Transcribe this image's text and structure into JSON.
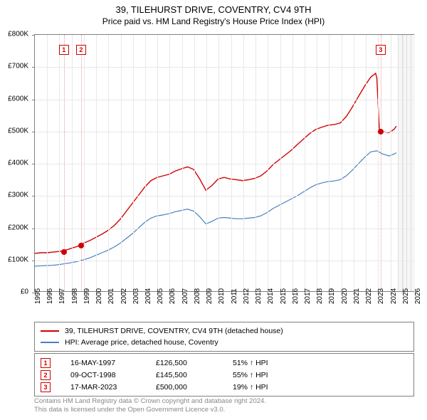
{
  "title": {
    "line1": "39, TILEHURST DRIVE, COVENTRY, CV4 9TH",
    "line2": "Price paid vs. HM Land Registry's House Price Index (HPI)"
  },
  "chart": {
    "type": "line",
    "background_color": "#ffffff",
    "border_color": "#808080",
    "grid_color": "#e8e8e8",
    "x": {
      "min": 1995,
      "max": 2026,
      "tick_step": 1,
      "label_fontsize": 10,
      "ticks": [
        1995,
        1996,
        1997,
        1998,
        1999,
        2000,
        2001,
        2002,
        2003,
        2004,
        2005,
        2006,
        2007,
        2008,
        2009,
        2010,
        2011,
        2012,
        2013,
        2014,
        2015,
        2016,
        2017,
        2018,
        2019,
        2020,
        2021,
        2022,
        2023,
        2024,
        2025,
        2026
      ]
    },
    "y": {
      "min": 0,
      "max": 800000,
      "tick_step": 100000,
      "prefix": "£",
      "suffix": "K",
      "divisor": 1000,
      "label_fontsize": 10,
      "ticks": [
        0,
        100000,
        200000,
        300000,
        400000,
        500000,
        600000,
        700000,
        800000
      ]
    },
    "future_band": {
      "start": 2024.6,
      "end": 2026,
      "fill": "#f6f6f6",
      "hatch_color": "#dddddd"
    },
    "series": [
      {
        "name": "39, TILEHURST DRIVE, COVENTRY, CV4 9TH (detached house)",
        "color": "#d00000",
        "line_width": 1.4,
        "points": [
          [
            1995.0,
            118000
          ],
          [
            1995.5,
            120000
          ],
          [
            1996.0,
            120000
          ],
          [
            1996.5,
            122000
          ],
          [
            1997.0,
            124000
          ],
          [
            1997.37,
            126500
          ],
          [
            1997.7,
            130000
          ],
          [
            1998.0,
            134000
          ],
          [
            1998.5,
            140000
          ],
          [
            1998.77,
            145500
          ],
          [
            1999.0,
            150000
          ],
          [
            1999.5,
            158000
          ],
          [
            2000.0,
            168000
          ],
          [
            2000.5,
            178000
          ],
          [
            2001.0,
            190000
          ],
          [
            2001.5,
            205000
          ],
          [
            2002.0,
            225000
          ],
          [
            2002.5,
            250000
          ],
          [
            2003.0,
            275000
          ],
          [
            2003.5,
            300000
          ],
          [
            2004.0,
            325000
          ],
          [
            2004.5,
            345000
          ],
          [
            2005.0,
            355000
          ],
          [
            2005.5,
            360000
          ],
          [
            2006.0,
            365000
          ],
          [
            2006.5,
            375000
          ],
          [
            2007.0,
            382000
          ],
          [
            2007.5,
            388000
          ],
          [
            2008.0,
            380000
          ],
          [
            2008.5,
            350000
          ],
          [
            2009.0,
            315000
          ],
          [
            2009.5,
            330000
          ],
          [
            2010.0,
            350000
          ],
          [
            2010.5,
            355000
          ],
          [
            2011.0,
            350000
          ],
          [
            2011.5,
            348000
          ],
          [
            2012.0,
            345000
          ],
          [
            2012.5,
            348000
          ],
          [
            2013.0,
            352000
          ],
          [
            2013.5,
            360000
          ],
          [
            2014.0,
            375000
          ],
          [
            2014.5,
            395000
          ],
          [
            2015.0,
            410000
          ],
          [
            2015.5,
            425000
          ],
          [
            2016.0,
            440000
          ],
          [
            2016.5,
            458000
          ],
          [
            2017.0,
            475000
          ],
          [
            2017.5,
            492000
          ],
          [
            2018.0,
            505000
          ],
          [
            2018.5,
            512000
          ],
          [
            2019.0,
            518000
          ],
          [
            2019.5,
            520000
          ],
          [
            2020.0,
            525000
          ],
          [
            2020.5,
            545000
          ],
          [
            2021.0,
            575000
          ],
          [
            2021.5,
            608000
          ],
          [
            2022.0,
            640000
          ],
          [
            2022.5,
            668000
          ],
          [
            2022.9,
            680000
          ],
          [
            2023.0,
            665000
          ],
          [
            2023.21,
            500000
          ],
          [
            2023.5,
            498000
          ],
          [
            2024.0,
            495000
          ],
          [
            2024.4,
            505000
          ],
          [
            2024.6,
            515000
          ]
        ]
      },
      {
        "name": "HPI: Average price, detached house, Coventry",
        "color": "#4a7fc4",
        "line_width": 1.2,
        "points": [
          [
            1995.0,
            78000
          ],
          [
            1995.5,
            79000
          ],
          [
            1996.0,
            80000
          ],
          [
            1996.5,
            81000
          ],
          [
            1997.0,
            83000
          ],
          [
            1997.5,
            86000
          ],
          [
            1998.0,
            89000
          ],
          [
            1998.5,
            93000
          ],
          [
            1999.0,
            98000
          ],
          [
            1999.5,
            104000
          ],
          [
            2000.0,
            112000
          ],
          [
            2000.5,
            120000
          ],
          [
            2001.0,
            128000
          ],
          [
            2001.5,
            138000
          ],
          [
            2002.0,
            150000
          ],
          [
            2002.5,
            165000
          ],
          [
            2003.0,
            180000
          ],
          [
            2003.5,
            198000
          ],
          [
            2004.0,
            215000
          ],
          [
            2004.5,
            228000
          ],
          [
            2005.0,
            235000
          ],
          [
            2005.5,
            238000
          ],
          [
            2006.0,
            242000
          ],
          [
            2006.5,
            248000
          ],
          [
            2007.0,
            252000
          ],
          [
            2007.5,
            256000
          ],
          [
            2008.0,
            250000
          ],
          [
            2008.5,
            232000
          ],
          [
            2009.0,
            210000
          ],
          [
            2009.5,
            218000
          ],
          [
            2010.0,
            228000
          ],
          [
            2010.5,
            230000
          ],
          [
            2011.0,
            228000
          ],
          [
            2011.5,
            226000
          ],
          [
            2012.0,
            226000
          ],
          [
            2012.5,
            228000
          ],
          [
            2013.0,
            230000
          ],
          [
            2013.5,
            235000
          ],
          [
            2014.0,
            245000
          ],
          [
            2014.5,
            258000
          ],
          [
            2015.0,
            268000
          ],
          [
            2015.5,
            278000
          ],
          [
            2016.0,
            288000
          ],
          [
            2016.5,
            298000
          ],
          [
            2017.0,
            310000
          ],
          [
            2017.5,
            322000
          ],
          [
            2018.0,
            332000
          ],
          [
            2018.5,
            338000
          ],
          [
            2019.0,
            342000
          ],
          [
            2019.5,
            344000
          ],
          [
            2020.0,
            348000
          ],
          [
            2020.5,
            360000
          ],
          [
            2021.0,
            378000
          ],
          [
            2021.5,
            398000
          ],
          [
            2022.0,
            418000
          ],
          [
            2022.5,
            435000
          ],
          [
            2023.0,
            438000
          ],
          [
            2023.5,
            428000
          ],
          [
            2024.0,
            422000
          ],
          [
            2024.4,
            428000
          ],
          [
            2024.6,
            432000
          ]
        ]
      }
    ],
    "transaction_markers": [
      {
        "num": "1",
        "x": 1997.37,
        "y": 126500,
        "line_color": "#e99"
      },
      {
        "num": "2",
        "x": 1998.77,
        "y": 145500,
        "line_color": "#e99"
      },
      {
        "num": "3",
        "x": 2023.21,
        "y": 500000,
        "line_color": "#e99"
      }
    ]
  },
  "legend_series": [
    {
      "color": "#d00000",
      "label": "39, TILEHURST DRIVE, COVENTRY, CV4 9TH (detached house)"
    },
    {
      "color": "#4a7fc4",
      "label": "HPI: Average price, detached house, Coventry"
    }
  ],
  "legend_transactions": [
    {
      "num": "1",
      "date": "16-MAY-1997",
      "price": "£126,500",
      "hpi": "51% ↑ HPI"
    },
    {
      "num": "2",
      "date": "09-OCT-1998",
      "price": "£145,500",
      "hpi": "55% ↑ HPI"
    },
    {
      "num": "3",
      "date": "17-MAR-2023",
      "price": "£500,000",
      "hpi": "19% ↑ HPI"
    }
  ],
  "footer": {
    "line1": "Contains HM Land Registry data © Crown copyright and database right 2024.",
    "line2": "This data is licensed under the Open Government Licence v3.0."
  }
}
